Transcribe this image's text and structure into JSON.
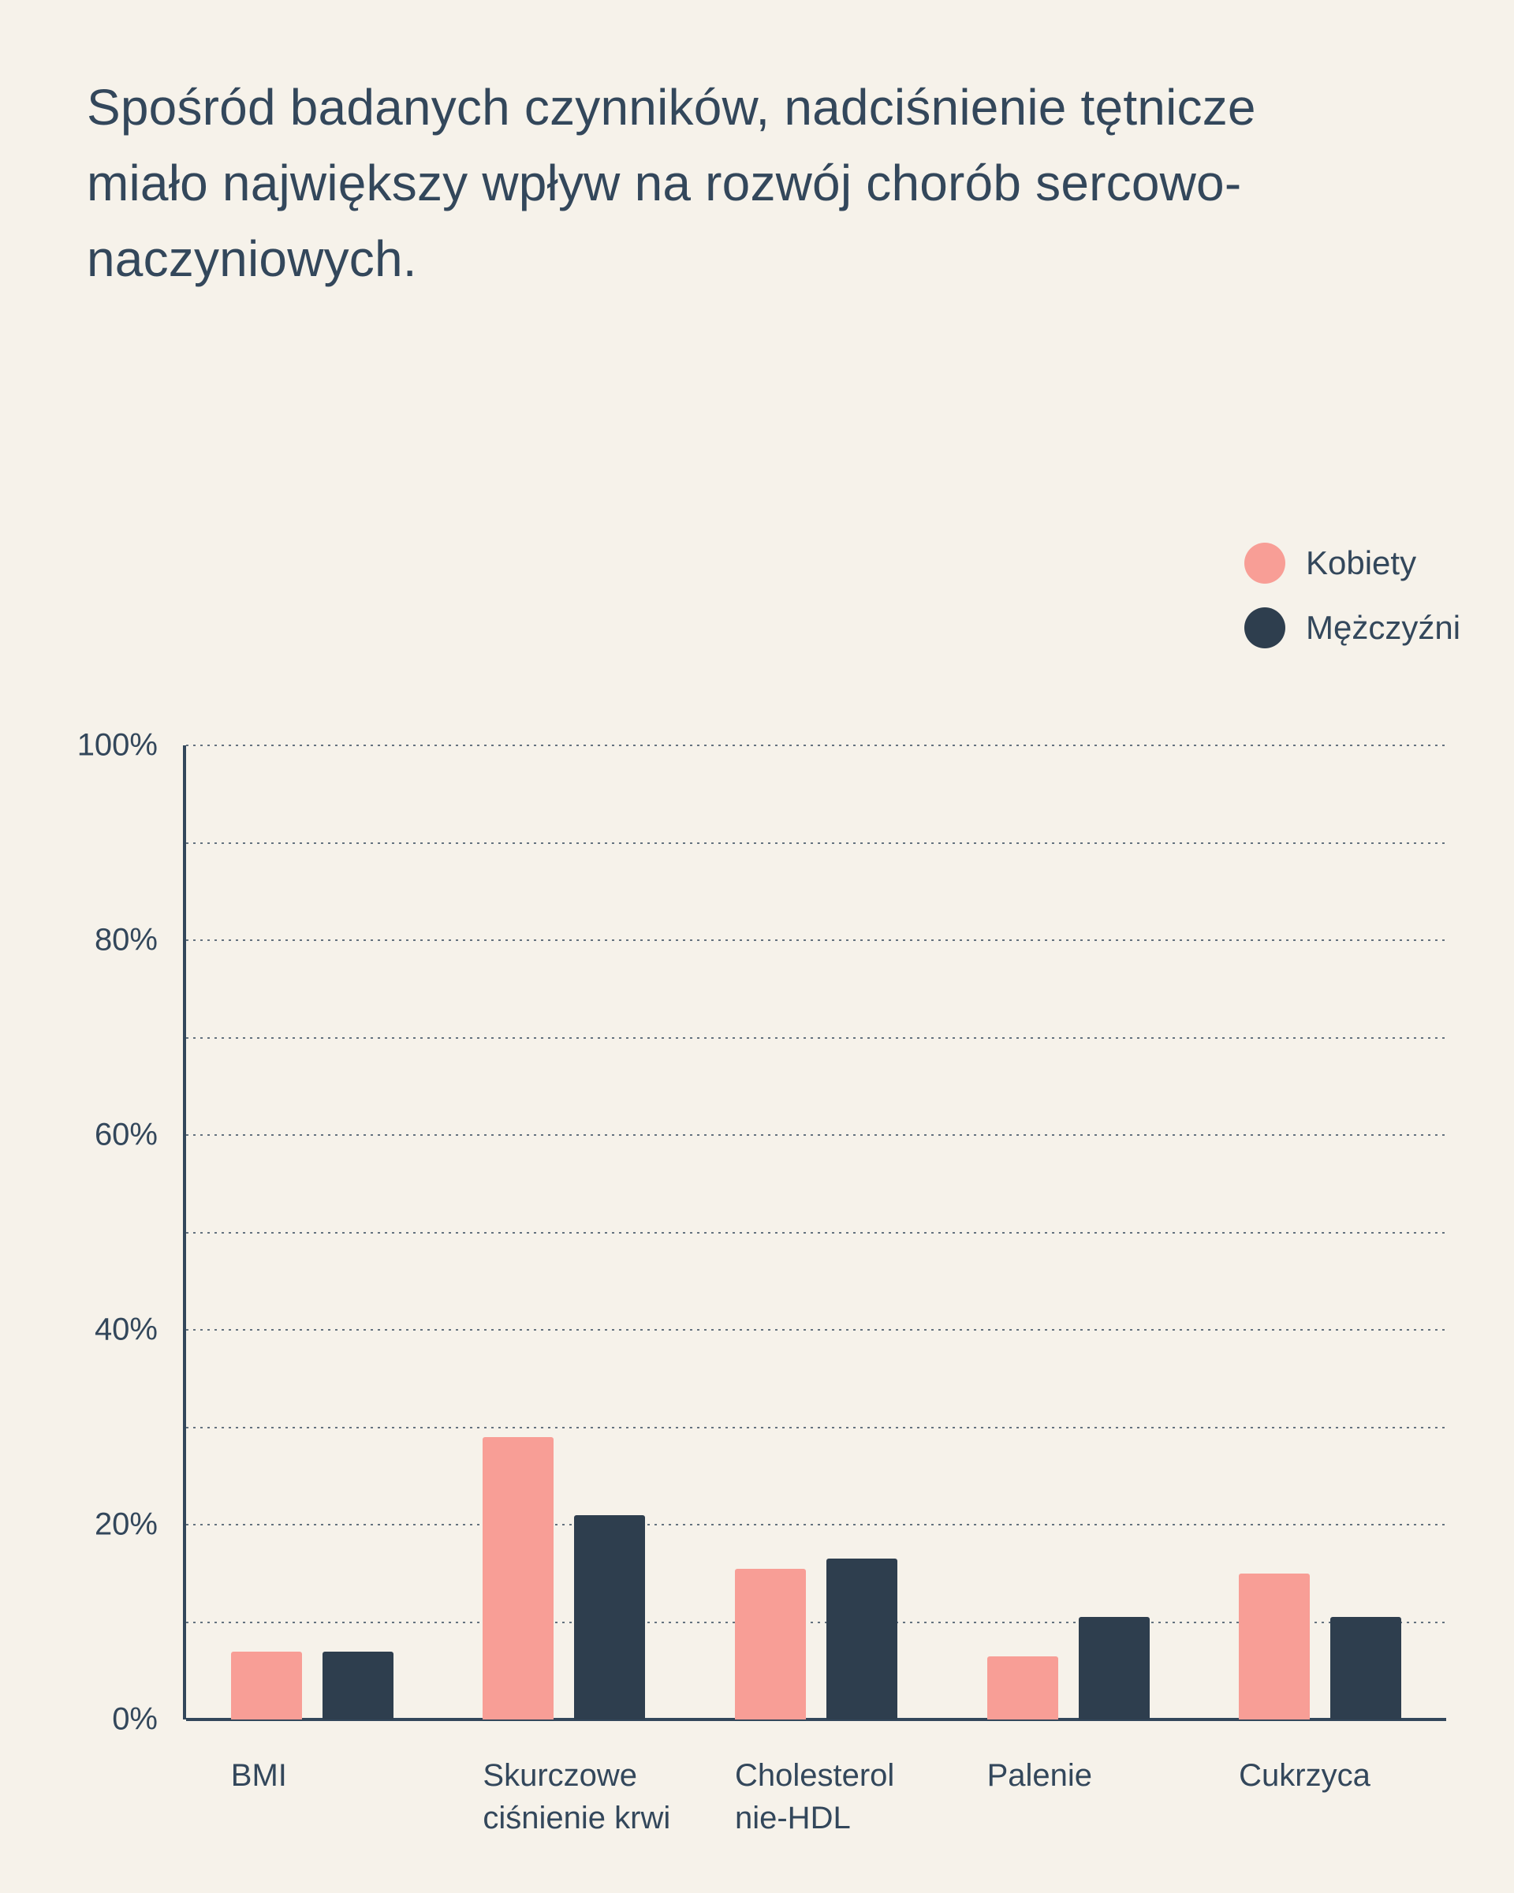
{
  "title": "Spośród badanych czynników, nadciśnienie tętnicze miało największy wpływ na rozwój chorób sercowo-naczyniowych.",
  "legend": [
    {
      "label": "Kobiety",
      "color": "#f89e96"
    },
    {
      "label": "Mężczyźni",
      "color": "#2e3e4e"
    }
  ],
  "chart_data": {
    "type": "bar",
    "title": "Spośród badanych czynników, nadciśnienie tętnicze miało największy wpływ na rozwój chorób sercowo-naczyniowych.",
    "categories": [
      "BMI",
      "Skurczowe ciśnienie krwi",
      "Cholesterol nie-HDL",
      "Palenie",
      "Cukrzyca"
    ],
    "series": [
      {
        "name": "Kobiety",
        "color": "#f89e96",
        "values": [
          7,
          29,
          15.5,
          6.5,
          15
        ]
      },
      {
        "name": "Mężczyźni",
        "color": "#2e3e4e",
        "values": [
          7,
          21,
          16.5,
          10.5,
          10.5
        ]
      }
    ],
    "xlabel": "",
    "ylabel": "",
    "ylim": [
      0,
      100
    ],
    "ytick_step": 20,
    "ytick_suffix": "%",
    "grid_step": 10,
    "grid": true,
    "gridline_style": "dotted",
    "legend_position": "top-right"
  },
  "colors": {
    "background": "#f6f2ea",
    "text": "#33475b",
    "axis": "#33475b",
    "gridline": "#33475b"
  }
}
